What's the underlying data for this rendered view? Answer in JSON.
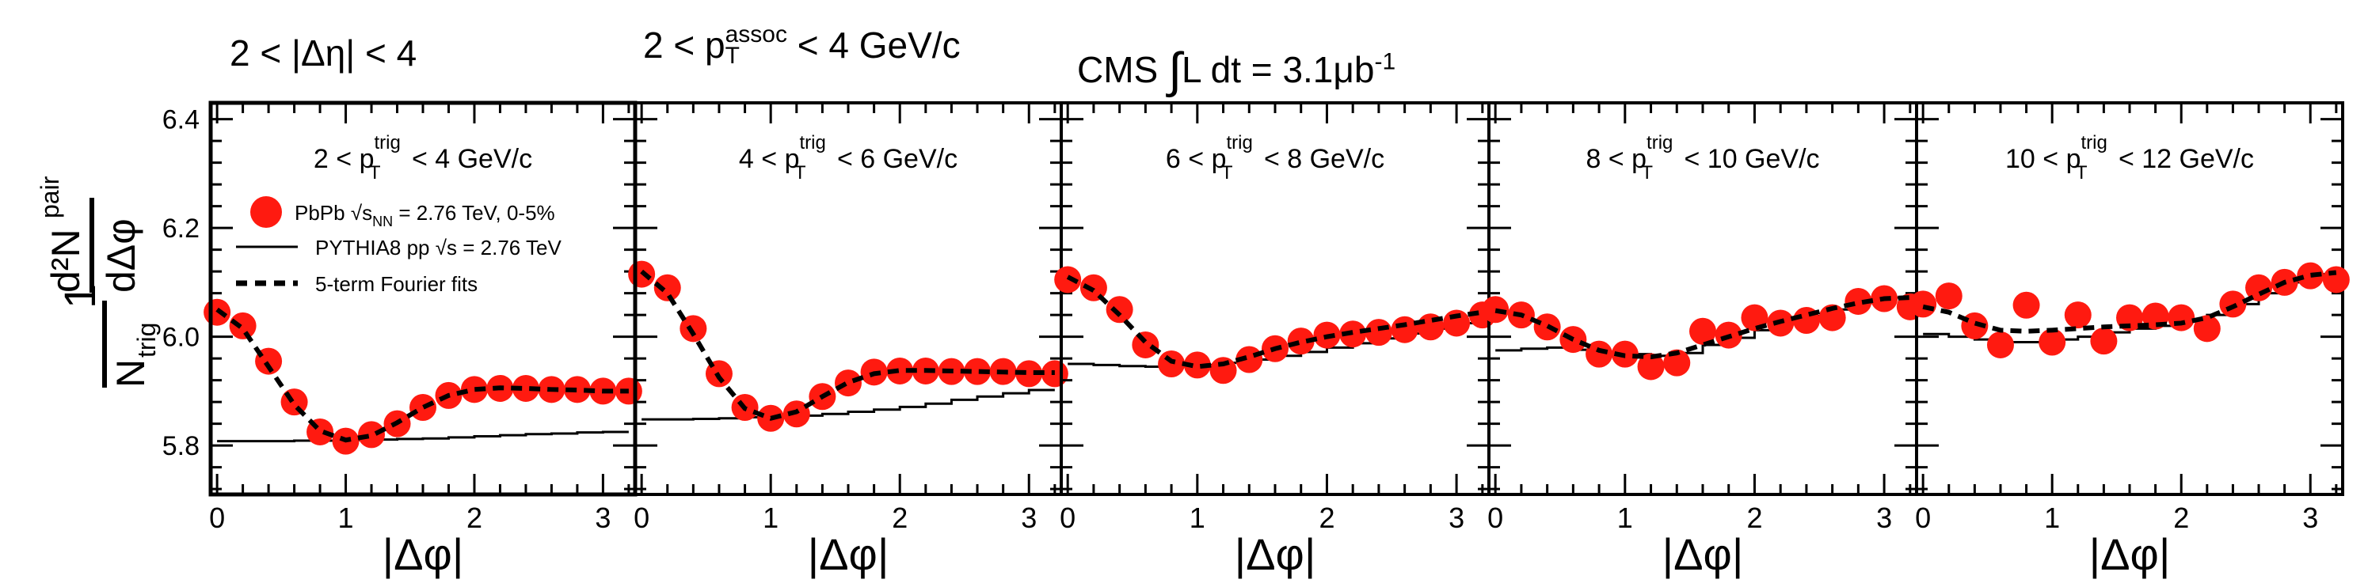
{
  "header": {
    "eta_text": "2 < |Δη| < 4",
    "assoc_pre": "2 < p",
    "assoc_sup": "assoc",
    "assoc_sub": "T",
    "assoc_post": " < 4 GeV/c",
    "cms_pre": "CMS",
    "cms_int": "∫",
    "cms_post": "L dt = 3.1μb",
    "cms_exp": "-1"
  },
  "ylabel": {
    "num": "1",
    "den": "N",
    "den_sub": "trig",
    "frac_num": "d²N",
    "frac_num_sup": "pair",
    "frac_den": "dΔφ"
  },
  "legend": {
    "pbpb": "PbPb √s",
    "pbpb_sub": "NN",
    "pbpb_post": " = 2.76 TeV, 0-5%",
    "pythia": "PYTHIA8 pp √s = 2.76 TeV",
    "fits": "5-term Fourier fits"
  },
  "colors": {
    "points": "#ff1a10",
    "line": "#000000"
  },
  "chart_data": [
    {
      "type": "scatter",
      "title": "2 < p_T^trig < 4 GeV/c",
      "xlabel": "|Δφ|",
      "xticks": [
        "0",
        "1",
        "2",
        "3"
      ],
      "yticks": [
        "5.8",
        "6.0",
        "6.2",
        "6.4"
      ],
      "xlim": [
        -0.05,
        3.25
      ],
      "ylim": [
        5.71,
        6.43
      ],
      "series": [
        {
          "name": "PbPb √sNN = 2.76 TeV, 0-5%",
          "x": [
            0.0,
            0.2,
            0.4,
            0.6,
            0.8,
            1.0,
            1.2,
            1.4,
            1.6,
            1.8,
            2.0,
            2.2,
            2.4,
            2.6,
            2.8,
            3.0,
            3.2
          ],
          "y": [
            6.045,
            6.02,
            5.955,
            5.88,
            5.825,
            5.808,
            5.82,
            5.84,
            5.87,
            5.892,
            5.903,
            5.905,
            5.905,
            5.903,
            5.903,
            5.9,
            5.9
          ]
        },
        {
          "name": "PYTHIA8 pp √s = 2.76 TeV",
          "x": [
            0.0,
            0.2,
            0.4,
            0.6,
            0.8,
            1.0,
            1.2,
            1.4,
            1.6,
            1.8,
            2.0,
            2.2,
            2.4,
            2.6,
            2.8,
            3.0
          ],
          "y": [
            5.808,
            5.808,
            5.808,
            5.809,
            5.809,
            5.81,
            5.811,
            5.812,
            5.813,
            5.815,
            5.817,
            5.819,
            5.821,
            5.822,
            5.824,
            5.825
          ]
        },
        {
          "name": "5-term Fourier fits",
          "x": [
            0.0,
            0.2,
            0.4,
            0.6,
            0.8,
            1.0,
            1.2,
            1.4,
            1.6,
            1.8,
            2.0,
            2.2,
            2.4,
            2.6,
            2.8,
            3.0,
            3.2
          ],
          "y": [
            6.05,
            6.015,
            5.945,
            5.875,
            5.827,
            5.81,
            5.818,
            5.842,
            5.87,
            5.892,
            5.903,
            5.906,
            5.905,
            5.903,
            5.902,
            5.9,
            5.9
          ]
        }
      ]
    },
    {
      "type": "scatter",
      "title": "4 < p_T^trig < 6 GeV/c",
      "xlabel": "|Δφ|",
      "xticks": [
        "0",
        "1",
        "2",
        "3"
      ],
      "yticks": [
        "5.8",
        "6.0",
        "6.2",
        "6.4"
      ],
      "xlim": [
        -0.05,
        3.25
      ],
      "ylim": [
        5.71,
        6.43
      ],
      "series": [
        {
          "name": "PbPb √sNN = 2.76 TeV, 0-5%",
          "x": [
            0.0,
            0.2,
            0.4,
            0.6,
            0.8,
            1.0,
            1.2,
            1.4,
            1.6,
            1.8,
            2.0,
            2.2,
            2.4,
            2.6,
            2.8,
            3.0,
            3.2
          ],
          "y": [
            6.115,
            6.09,
            6.015,
            5.932,
            5.87,
            5.85,
            5.858,
            5.89,
            5.915,
            5.935,
            5.937,
            5.937,
            5.936,
            5.936,
            5.936,
            5.932,
            5.932
          ]
        },
        {
          "name": "PYTHIA8 pp √s = 2.76 TeV",
          "x": [
            0.0,
            0.2,
            0.4,
            0.6,
            0.8,
            1.0,
            1.2,
            1.4,
            1.6,
            1.8,
            2.0,
            2.2,
            2.4,
            2.6,
            2.8,
            3.0
          ],
          "y": [
            5.848,
            5.848,
            5.849,
            5.85,
            5.852,
            5.853,
            5.855,
            5.858,
            5.862,
            5.866,
            5.871,
            5.877,
            5.884,
            5.89,
            5.896,
            5.902
          ]
        },
        {
          "name": "5-term Fourier fits",
          "x": [
            0.0,
            0.2,
            0.4,
            0.6,
            0.8,
            1.0,
            1.2,
            1.4,
            1.6,
            1.8,
            2.0,
            2.2,
            2.4,
            2.6,
            2.8,
            3.0,
            3.2
          ],
          "y": [
            6.12,
            6.08,
            6.005,
            5.925,
            5.868,
            5.85,
            5.862,
            5.89,
            5.916,
            5.932,
            5.938,
            5.938,
            5.937,
            5.936,
            5.935,
            5.934,
            5.934
          ]
        }
      ]
    },
    {
      "type": "scatter",
      "title": "6 < p_T^trig < 8 GeV/c",
      "xlabel": "|Δφ|",
      "xticks": [
        "0",
        "1",
        "2",
        "3"
      ],
      "yticks": [
        "5.8",
        "6.0",
        "6.2",
        "6.4"
      ],
      "xlim": [
        -0.05,
        3.25
      ],
      "ylim": [
        5.71,
        6.43
      ],
      "series": [
        {
          "name": "PbPb √sNN = 2.76 TeV, 0-5%",
          "x": [
            0.0,
            0.2,
            0.4,
            0.6,
            0.8,
            1.0,
            1.2,
            1.4,
            1.6,
            1.8,
            2.0,
            2.2,
            2.4,
            2.6,
            2.8,
            3.0,
            3.2
          ],
          "y": [
            6.105,
            6.09,
            6.05,
            5.985,
            5.95,
            5.948,
            5.938,
            5.958,
            5.978,
            5.992,
            6.003,
            6.005,
            6.008,
            6.013,
            6.018,
            6.025,
            6.04
          ]
        },
        {
          "name": "PYTHIA8 pp √s = 2.76 TeV",
          "x": [
            0.0,
            0.2,
            0.4,
            0.6,
            0.8,
            1.0,
            1.2,
            1.4,
            1.6,
            1.8,
            2.0,
            2.2,
            2.4,
            2.6,
            2.8,
            3.0
          ],
          "y": [
            5.95,
            5.948,
            5.946,
            5.945,
            5.946,
            5.948,
            5.952,
            5.958,
            5.965,
            5.972,
            5.98,
            5.988,
            5.997,
            6.006,
            6.015,
            6.025
          ]
        },
        {
          "name": "5-term Fourier fits",
          "x": [
            0.0,
            0.2,
            0.4,
            0.6,
            0.8,
            1.0,
            1.2,
            1.4,
            1.6,
            1.8,
            2.0,
            2.2,
            2.4,
            2.6,
            2.8,
            3.0,
            3.2
          ],
          "y": [
            6.11,
            6.085,
            6.04,
            5.99,
            5.955,
            5.945,
            5.95,
            5.963,
            5.978,
            5.99,
            6.0,
            6.008,
            6.015,
            6.022,
            6.03,
            6.038,
            6.045
          ]
        }
      ]
    },
    {
      "type": "scatter",
      "title": "8 < p_T^trig < 10 GeV/c",
      "xlabel": "|Δφ|",
      "xticks": [
        "0",
        "1",
        "2",
        "3"
      ],
      "yticks": [
        "5.8",
        "6.0",
        "6.2",
        "6.4"
      ],
      "xlim": [
        -0.05,
        3.25
      ],
      "ylim": [
        5.71,
        6.43
      ],
      "series": [
        {
          "name": "PbPb √sNN = 2.76 TeV, 0-5%",
          "x": [
            0.0,
            0.2,
            0.4,
            0.6,
            0.8,
            1.0,
            1.2,
            1.4,
            1.6,
            1.8,
            2.0,
            2.2,
            2.4,
            2.6,
            2.8,
            3.0,
            3.2
          ],
          "y": [
            6.05,
            6.04,
            6.018,
            5.995,
            5.968,
            5.968,
            5.945,
            5.952,
            6.01,
            6.003,
            6.035,
            6.025,
            6.03,
            6.035,
            6.065,
            6.07,
            6.055
          ]
        },
        {
          "name": "PYTHIA8 pp √s = 2.76 TeV",
          "x": [
            0.0,
            0.2,
            0.4,
            0.6,
            0.8,
            1.0,
            1.2,
            1.4,
            1.6,
            1.8,
            2.0,
            2.2,
            2.4,
            2.6,
            2.8,
            3.0
          ],
          "y": [
            5.975,
            5.978,
            5.98,
            5.976,
            5.972,
            5.968,
            5.965,
            5.97,
            5.985,
            5.998,
            6.012,
            6.025,
            6.038,
            6.05,
            6.062,
            6.072
          ]
        },
        {
          "name": "5-term Fourier fits",
          "x": [
            0.0,
            0.2,
            0.4,
            0.6,
            0.8,
            1.0,
            1.2,
            1.4,
            1.6,
            1.8,
            2.0,
            2.2,
            2.4,
            2.6,
            2.8,
            3.0,
            3.2
          ],
          "y": [
            6.048,
            6.04,
            6.02,
            5.995,
            5.975,
            5.965,
            5.963,
            5.97,
            5.985,
            6.0,
            6.015,
            6.028,
            6.04,
            6.052,
            6.062,
            6.07,
            6.072
          ]
        }
      ]
    },
    {
      "type": "scatter",
      "title": "10 < p_T^trig < 12 GeV/c",
      "xlabel": "|Δφ|",
      "xticks": [
        "0",
        "1",
        "2",
        "3"
      ],
      "yticks": [
        "5.8",
        "6.0",
        "6.2",
        "6.4"
      ],
      "xlim": [
        -0.05,
        3.25
      ],
      "ylim": [
        5.71,
        6.43
      ],
      "series": [
        {
          "name": "PbPb √sNN = 2.76 TeV, 0-5%",
          "x": [
            0.0,
            0.2,
            0.4,
            0.6,
            0.8,
            1.0,
            1.2,
            1.4,
            1.6,
            1.8,
            2.0,
            2.2,
            2.4,
            2.6,
            2.8,
            3.0,
            3.2
          ],
          "y": [
            6.06,
            6.075,
            6.02,
            5.985,
            6.058,
            5.99,
            6.04,
            5.992,
            6.035,
            6.038,
            6.035,
            6.015,
            6.06,
            6.09,
            6.1,
            6.112,
            6.105
          ]
        },
        {
          "name": "PYTHIA8 pp √s = 2.76 TeV",
          "x": [
            0.0,
            0.2,
            0.4,
            0.6,
            0.8,
            1.0,
            1.2,
            1.4,
            1.6,
            1.8,
            2.0,
            2.2,
            2.4,
            2.6,
            2.8,
            3.0
          ],
          "y": [
            6.005,
            6.0,
            5.995,
            5.99,
            5.99,
            5.995,
            6.0,
            6.008,
            6.015,
            6.02,
            6.028,
            6.04,
            6.06,
            6.08,
            6.1,
            6.115
          ]
        },
        {
          "name": "5-term Fourier fits",
          "x": [
            0.0,
            0.2,
            0.4,
            0.6,
            0.8,
            1.0,
            1.2,
            1.4,
            1.6,
            1.8,
            2.0,
            2.2,
            2.4,
            2.6,
            2.8,
            3.0,
            3.2
          ],
          "y": [
            6.055,
            6.045,
            6.025,
            6.012,
            6.01,
            6.012,
            6.015,
            6.018,
            6.02,
            6.022,
            6.025,
            6.035,
            6.055,
            6.078,
            6.1,
            6.113,
            6.118
          ]
        }
      ]
    }
  ]
}
